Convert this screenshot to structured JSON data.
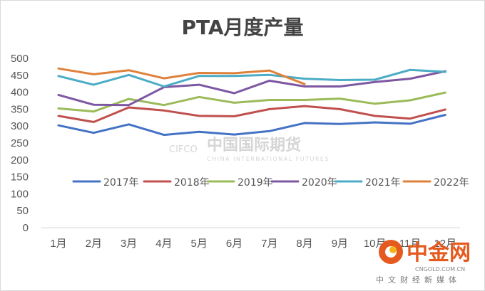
{
  "chart_data": {
    "type": "line",
    "title": "PTA月度产量",
    "xlabel": "",
    "ylabel": "",
    "categories": [
      "1月",
      "2月",
      "3月",
      "4月",
      "5月",
      "6月",
      "7月",
      "8月",
      "9月",
      "10月",
      "11月",
      "12月"
    ],
    "ylim": [
      0,
      500
    ],
    "yticks": [
      0,
      50,
      100,
      150,
      200,
      250,
      300,
      350,
      400,
      450,
      500
    ],
    "grid": false,
    "legend_position": "middle",
    "series": [
      {
        "name": "2017年",
        "color": "#4472C4",
        "values": [
          302,
          280,
          305,
          274,
          283,
          275,
          285,
          309,
          306,
          311,
          307,
          333
        ]
      },
      {
        "name": "2018年",
        "color": "#C0504D",
        "values": [
          330,
          312,
          355,
          346,
          330,
          329,
          350,
          359,
          350,
          330,
          322,
          349
        ]
      },
      {
        "name": "2019年",
        "color": "#9BBB59",
        "values": [
          352,
          343,
          380,
          362,
          386,
          369,
          377,
          377,
          381,
          366,
          376,
          399
        ]
      },
      {
        "name": "2020年",
        "color": "#7E57A2",
        "values": [
          392,
          363,
          362,
          415,
          422,
          397,
          434,
          417,
          417,
          430,
          440,
          462
        ]
      },
      {
        "name": "2021年",
        "color": "#4BACC6",
        "values": [
          448,
          422,
          451,
          417,
          448,
          448,
          451,
          440,
          436,
          437,
          466,
          460
        ]
      },
      {
        "name": "2022年",
        "color": "#E0813A",
        "values": [
          470,
          453,
          465,
          441,
          457,
          456,
          464,
          424,
          null,
          null,
          null,
          null
        ]
      }
    ]
  },
  "watermarks": {
    "cifco_left": "CIFCO",
    "cifco_cn": "中国国际期货",
    "cifco_en": "CHINA INTERNATIONAL FUTURES",
    "site_name": "中金网",
    "site_url": "CNGOLD.COM.CN",
    "site_sub": "中文财经新媒体"
  }
}
